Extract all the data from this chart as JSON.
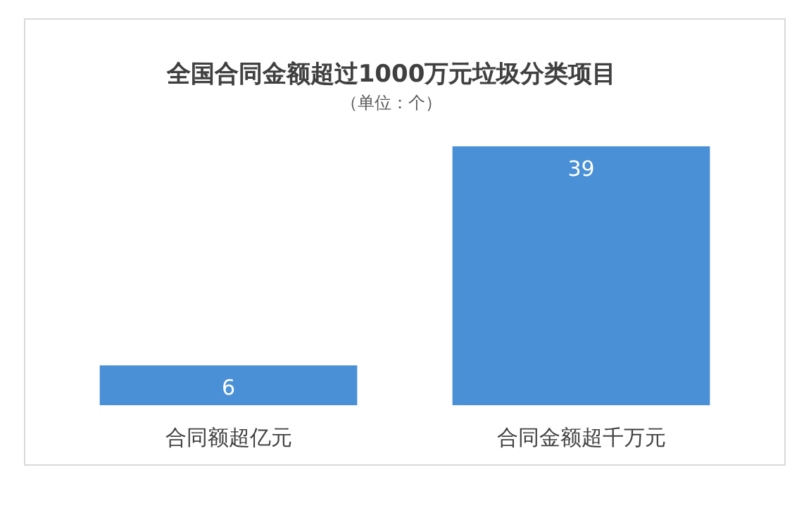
{
  "chart_data": {
    "type": "bar",
    "title": "全国合同金额超过1000万元垃圾分类项目",
    "subtitle": "（单位：个）",
    "categories": [
      "合同额超亿元",
      "合同金额超千万元"
    ],
    "values": [
      6,
      39
    ],
    "color": "#4a90d6",
    "data_labels": true
  }
}
